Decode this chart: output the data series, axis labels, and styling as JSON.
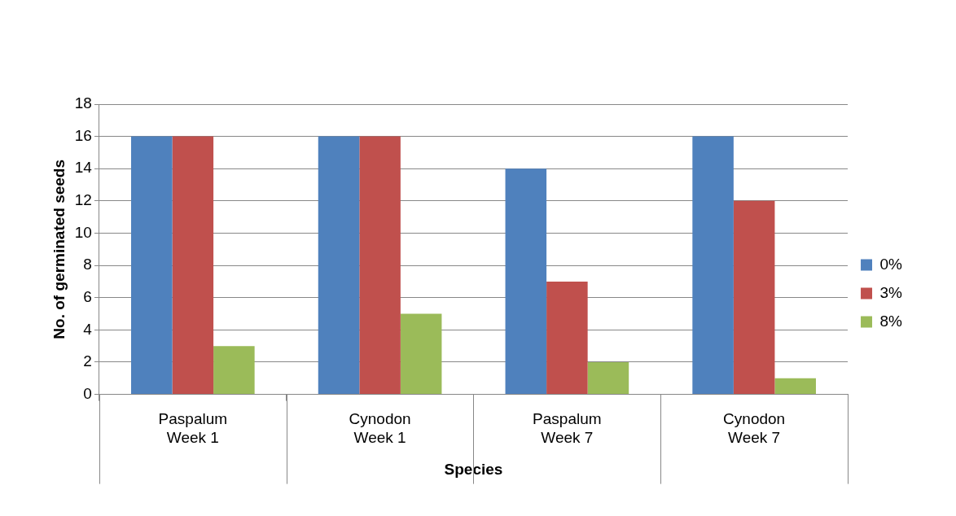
{
  "chart_data": {
    "type": "bar",
    "xlabel": "Species",
    "ylabel": "No. of germinated seeds",
    "categories": [
      "Paspalum\nWeek 1",
      "Cynodon\nWeek 1",
      "Paspalum\nWeek 7",
      "Cynodon\nWeek 7"
    ],
    "series": [
      {
        "name": "0%",
        "color": "#4f81bd",
        "values": [
          16,
          16,
          14,
          16
        ]
      },
      {
        "name": "3%",
        "color": "#c0504d",
        "values": [
          16,
          16,
          7,
          12
        ]
      },
      {
        "name": "8%",
        "color": "#9bbb59",
        "values": [
          3,
          5,
          2,
          1
        ]
      }
    ],
    "ylim": [
      0,
      18
    ],
    "yticks": [
      0,
      2,
      4,
      6,
      8,
      10,
      12,
      14,
      16,
      18
    ],
    "grid": "y",
    "legend": "right"
  }
}
